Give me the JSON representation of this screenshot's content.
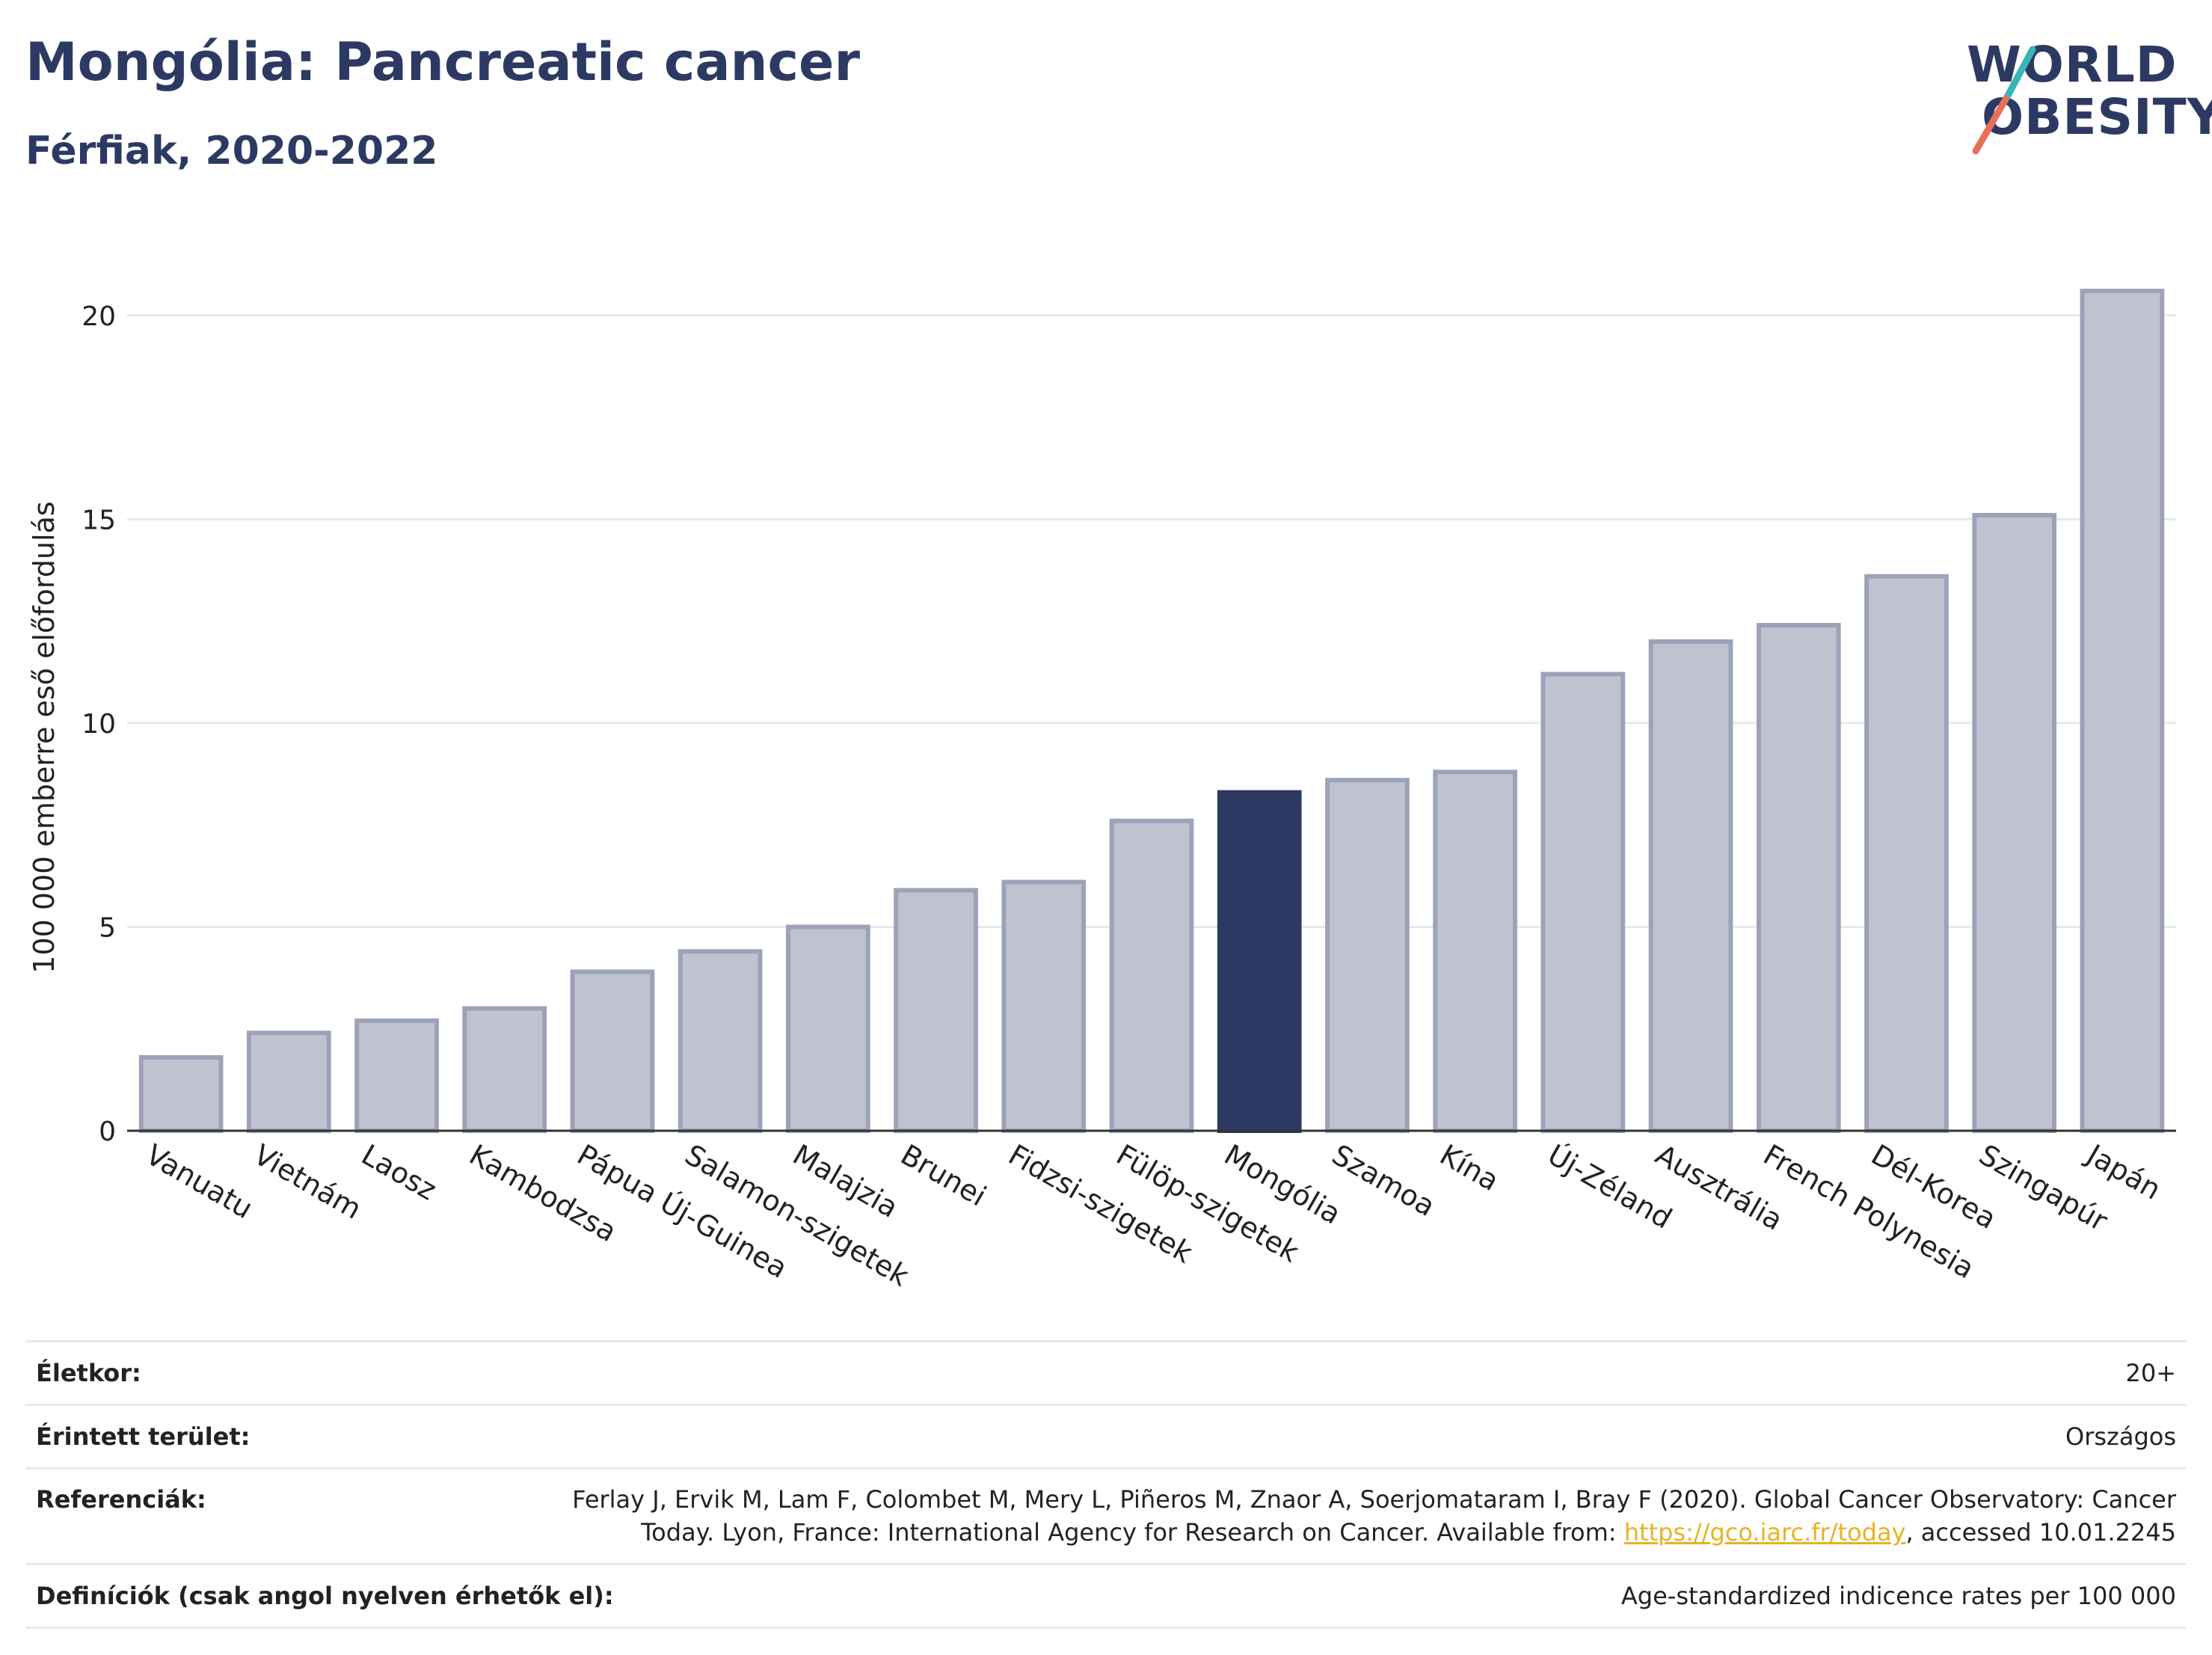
{
  "header": {
    "title": "Mongólia: Pancreatic cancer",
    "subtitle": "Férfiak, 2020-2022"
  },
  "logo": {
    "line1": "WORLD",
    "line2": "OBESITY"
  },
  "colors": {
    "bar": "#c0c3cf",
    "bar_border": "#9da2b9",
    "highlight": "#2c3a63",
    "grid": "#e6e9ee",
    "axis": "#333333"
  },
  "chart_data": {
    "type": "bar",
    "ylabel": "100 000 emberre eső előfordulás",
    "ylim": [
      0,
      21.5
    ],
    "yticks": [
      0,
      5,
      10,
      15,
      20
    ],
    "grid": true,
    "highlight": "Mongólia",
    "categories": [
      "Vanuatu",
      "Vietnám",
      "Laosz",
      "Kambodzsa",
      "Pápua Új-Guinea",
      "Salamon-szigetek",
      "Malajzia",
      "Brunei",
      "Fidzsi-szigetek",
      "Fülöp-szigetek",
      "Mongólia",
      "Szamoa",
      "Kína",
      "Új-Zéland",
      "Ausztrália",
      "French Polynesia",
      "Dél-Korea",
      "Szingapúr",
      "Japán"
    ],
    "values": [
      1.8,
      2.4,
      2.7,
      3.0,
      3.9,
      4.4,
      5.0,
      5.9,
      6.1,
      7.6,
      8.3,
      8.6,
      8.8,
      11.2,
      12.0,
      12.4,
      13.6,
      15.1,
      20.6
    ]
  },
  "meta": {
    "age_label": "Életkor:",
    "age_value": "20+",
    "area_label": "Érintett terület:",
    "area_value": "Országos",
    "refs_label": "Referenciák:",
    "refs_text_1": "Ferlay J, Ervik M, Lam F, Colombet M, Mery L, Piñeros M, Znaor A, Soerjomataram I, Bray F (2020). Global Cancer Observatory: Cancer",
    "refs_text_2": "Today. Lyon, France: International Agency for Research on Cancer. Available from: ",
    "refs_link": "https://gco.iarc.fr/today",
    "refs_text_3": ", accessed 10.01.2245",
    "defs_label": "Definíciók (csak angol nyelven érhetők el):",
    "defs_value": "Age-standardized indicence rates per 100 000"
  }
}
